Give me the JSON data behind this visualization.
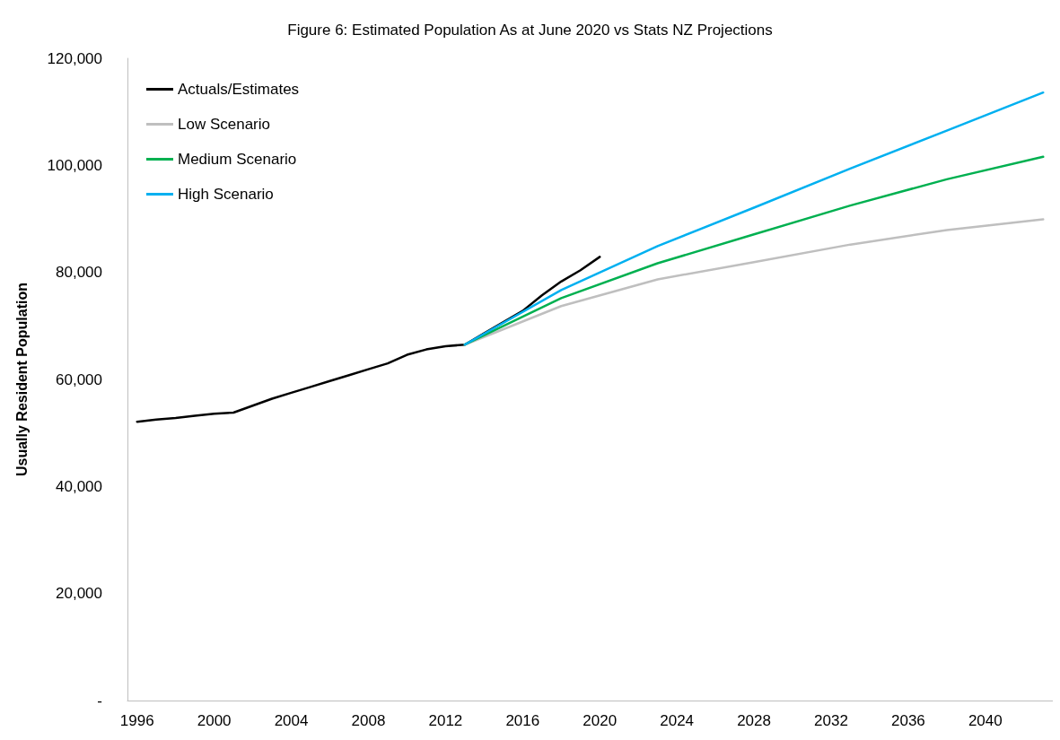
{
  "chart_data": {
    "type": "line",
    "title": "Figure 6: Estimated Population As at June 2020 vs Stats NZ Projections",
    "ylabel": "Usually Resident Population",
    "xlim": [
      1995.5,
      2043.5
    ],
    "xticks": [
      1996,
      2000,
      2004,
      2008,
      2012,
      2016,
      2020,
      2024,
      2028,
      2032,
      2036,
      2040
    ],
    "ylim": [
      0,
      120000
    ],
    "yticks": [
      {
        "value": 0,
        "label": "-"
      },
      {
        "value": 20000,
        "label": "20,000"
      },
      {
        "value": 40000,
        "label": "40,000"
      },
      {
        "value": 60000,
        "label": "60,000"
      },
      {
        "value": 80000,
        "label": "80,000"
      },
      {
        "value": 100000,
        "label": "100,000"
      },
      {
        "value": 120000,
        "label": "120,000"
      }
    ],
    "grid": false,
    "legend": "top left",
    "marker": "none",
    "line_style": "solid",
    "series": [
      {
        "name": "Actuals/Estimates",
        "color": "#000000",
        "x": [
          1996,
          1997,
          1998,
          1999,
          2000,
          2001,
          2002,
          2003,
          2004,
          2005,
          2006,
          2007,
          2008,
          2009,
          2010,
          2011,
          2012,
          2013,
          2014,
          2015,
          2016,
          2017,
          2018,
          2019,
          2020
        ],
        "values": [
          52100,
          52500,
          52800,
          53200,
          53600,
          53800,
          55100,
          56400,
          57500,
          58600,
          59700,
          60800,
          61900,
          63000,
          64600,
          65600,
          66200,
          66500,
          68600,
          70700,
          72800,
          75700,
          78300,
          80400,
          82900
        ]
      },
      {
        "name": "Low Scenario",
        "color": "#bfbfbf",
        "x": [
          2013,
          2018,
          2023,
          2028,
          2033,
          2038,
          2043
        ],
        "values": [
          66500,
          73700,
          78700,
          81900,
          85200,
          87900,
          89900
        ]
      },
      {
        "name": "Medium Scenario",
        "color": "#00b050",
        "x": [
          2013,
          2018,
          2023,
          2028,
          2033,
          2038,
          2043
        ],
        "values": [
          66500,
          75200,
          81700,
          87100,
          92500,
          97400,
          101600
        ]
      },
      {
        "name": "High Scenario",
        "color": "#00b0f0",
        "x": [
          2013,
          2018,
          2023,
          2028,
          2033,
          2038,
          2043
        ],
        "values": [
          66500,
          76700,
          84900,
          92100,
          99400,
          106500,
          113600
        ]
      }
    ]
  }
}
